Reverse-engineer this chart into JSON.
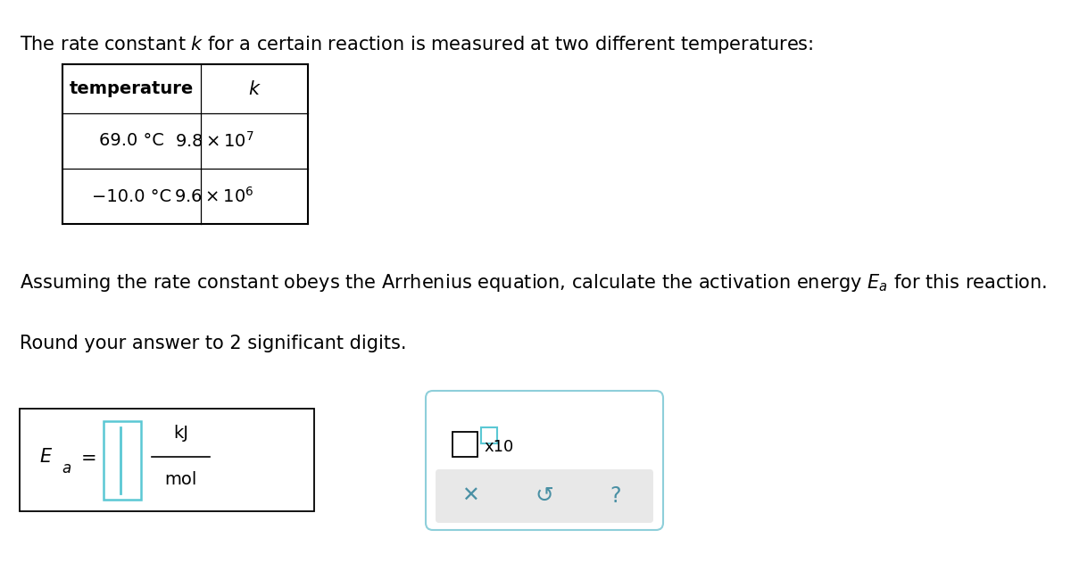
{
  "bg_color": "#ffffff",
  "intro_text": "The rate constant $k$ for a certain reaction is measured at two different temperatures:",
  "table": {
    "col1_header": "temperature",
    "col2_header": "$k$",
    "row1_temp": "69.0 °C",
    "row1_k": "$9.8 \\times 10^7$",
    "row2_temp": "−10.0 °C",
    "row2_k": "$9.6 \\times 10^6$"
  },
  "assumption_text": "Assuming the rate constant obeys the Arrhenius equation, calculate the activation energy $E_a$ for this reaction.",
  "round_text": "Round your answer to 2 significant digits.",
  "input_box_color": "#5bc8d4",
  "btn_color": "#4a90a4",
  "second_box_border": "#8ecfda",
  "bottom_panel_color": "#e8e8e8",
  "fontsize_main": 15,
  "fontsize_table": 14
}
